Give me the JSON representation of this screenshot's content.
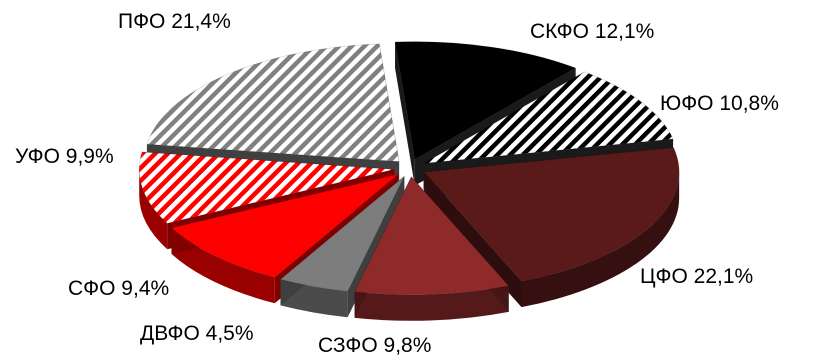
{
  "chart_data": {
    "type": "pie",
    "style": "3d-exploded",
    "title": "",
    "legend": "none",
    "slices": [
      {
        "label": "ЦФО 22,1%",
        "value": 22.1,
        "color": "#5a1a1a",
        "pattern": "solid"
      },
      {
        "label": "СЗФО 9,8%",
        "value": 9.8,
        "color": "#8e2a2a",
        "pattern": "solid"
      },
      {
        "label": "ДВФО 4,5%",
        "value": 4.5,
        "color": "#7d7d7d",
        "pattern": "solid"
      },
      {
        "label": "СФО 9,4%",
        "value": 9.4,
        "color": "#ff0000",
        "pattern": "solid"
      },
      {
        "label": "УФО 9,9%",
        "value": 9.9,
        "color": "#ff0000",
        "pattern": "diagonal-stripes"
      },
      {
        "label": "ПФО 21,4%",
        "value": 21.4,
        "color": "#808080",
        "pattern": "diagonal-stripes"
      },
      {
        "label": "СКФО 12,1%",
        "value": 12.1,
        "color": "#000000",
        "pattern": "solid"
      },
      {
        "label": "ЮФО 10,8%",
        "value": 10.8,
        "color": "#000000",
        "pattern": "diagonal-stripes"
      }
    ]
  }
}
